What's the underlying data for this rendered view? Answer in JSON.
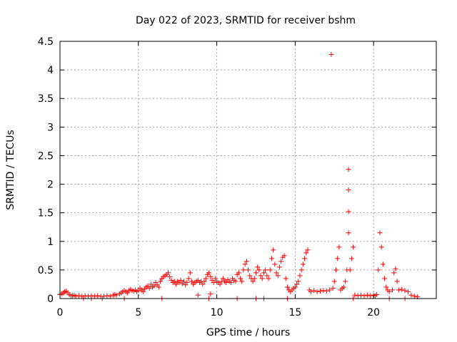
{
  "chart_data": {
    "type": "scatter",
    "title": "Day 022 of 2023, SRMTID for receiver bshm",
    "xlabel": "GPS time / hours",
    "ylabel": "SRMTID / TECUs",
    "xlim": [
      0,
      24
    ],
    "ylim": [
      0,
      4.5
    ],
    "x_ticks": [
      0,
      5,
      10,
      15,
      20
    ],
    "x_tick_labels": [
      "0",
      "5",
      "10",
      "15",
      "20"
    ],
    "y_ticks": [
      0,
      0.5,
      1,
      1.5,
      2,
      2.5,
      3,
      3.5,
      4,
      4.5
    ],
    "y_tick_labels": [
      "0",
      "0.5",
      "1",
      "1.5",
      "2",
      "2.5",
      "3",
      "3.5",
      "4",
      "4.5"
    ],
    "grid": true,
    "marker": "+",
    "color": "#ff0000",
    "series": [
      {
        "name": "SRMTID",
        "points": [
          [
            0.0,
            0.07
          ],
          [
            0.1,
            0.08
          ],
          [
            0.2,
            0.1
          ],
          [
            0.3,
            0.12
          ],
          [
            0.4,
            0.13
          ],
          [
            0.5,
            0.1
          ],
          [
            0.6,
            0.07
          ],
          [
            0.7,
            0.05
          ],
          [
            0.8,
            0.05
          ],
          [
            0.9,
            0.06
          ],
          [
            1.0,
            0.04
          ],
          [
            1.2,
            0.05
          ],
          [
            1.4,
            0.04
          ],
          [
            1.6,
            0.05
          ],
          [
            1.8,
            0.04
          ],
          [
            2.0,
            0.05
          ],
          [
            2.2,
            0.04
          ],
          [
            2.4,
            0.05
          ],
          [
            2.6,
            0.04
          ],
          [
            2.8,
            0.04
          ],
          [
            3.0,
            0.05
          ],
          [
            3.2,
            0.04
          ],
          [
            3.4,
            0.06
          ],
          [
            3.5,
            0.07
          ],
          [
            3.6,
            0.06
          ],
          [
            3.8,
            0.08
          ],
          [
            3.9,
            0.1
          ],
          [
            4.0,
            0.12
          ],
          [
            4.1,
            0.14
          ],
          [
            4.2,
            0.12
          ],
          [
            4.3,
            0.1
          ],
          [
            4.4,
            0.14
          ],
          [
            4.5,
            0.16
          ],
          [
            4.6,
            0.14
          ],
          [
            4.7,
            0.13
          ],
          [
            4.8,
            0.15
          ],
          [
            4.9,
            0.12
          ],
          [
            5.0,
            0.14
          ],
          [
            5.1,
            0.18
          ],
          [
            5.2,
            0.15
          ],
          [
            5.3,
            0.12
          ],
          [
            5.4,
            0.17
          ],
          [
            5.5,
            0.2
          ],
          [
            5.6,
            0.22
          ],
          [
            5.7,
            0.18
          ],
          [
            5.8,
            0.25
          ],
          [
            5.9,
            0.2
          ],
          [
            6.0,
            0.22
          ],
          [
            6.1,
            0.28
          ],
          [
            6.2,
            0.24
          ],
          [
            6.3,
            0.2
          ],
          [
            6.4,
            0.3
          ],
          [
            6.5,
            0.35
          ],
          [
            6.6,
            0.38
          ],
          [
            6.7,
            0.4
          ],
          [
            6.8,
            0.42
          ],
          [
            6.9,
            0.45
          ],
          [
            7.0,
            0.38
          ],
          [
            7.1,
            0.32
          ],
          [
            7.2,
            0.28
          ],
          [
            7.3,
            0.3
          ],
          [
            7.4,
            0.25
          ],
          [
            7.5,
            0.3
          ],
          [
            7.6,
            0.28
          ],
          [
            7.7,
            0.32
          ],
          [
            7.8,
            0.26
          ],
          [
            7.9,
            0.3
          ],
          [
            8.0,
            0.24
          ],
          [
            8.1,
            0.28
          ],
          [
            8.2,
            0.35
          ],
          [
            8.3,
            0.45
          ],
          [
            8.4,
            0.3
          ],
          [
            8.5,
            0.25
          ],
          [
            8.6,
            0.28
          ],
          [
            8.7,
            0.3
          ],
          [
            8.8,
            0.32
          ],
          [
            8.9,
            0.28
          ],
          [
            9.0,
            0.3
          ],
          [
            9.1,
            0.25
          ],
          [
            9.2,
            0.3
          ],
          [
            9.3,
            0.35
          ],
          [
            9.4,
            0.42
          ],
          [
            9.5,
            0.45
          ],
          [
            9.6,
            0.38
          ],
          [
            9.7,
            0.32
          ],
          [
            9.8,
            0.28
          ],
          [
            9.9,
            0.35
          ],
          [
            10.0,
            0.3
          ],
          [
            10.1,
            0.28
          ],
          [
            10.2,
            0.25
          ],
          [
            10.3,
            0.3
          ],
          [
            10.4,
            0.35
          ],
          [
            10.5,
            0.3
          ],
          [
            10.6,
            0.28
          ],
          [
            10.7,
            0.33
          ],
          [
            10.8,
            0.3
          ],
          [
            10.9,
            0.28
          ],
          [
            11.0,
            0.35
          ],
          [
            11.1,
            0.32
          ],
          [
            11.2,
            0.3
          ],
          [
            11.3,
            0.42
          ],
          [
            11.4,
            0.45
          ],
          [
            11.5,
            0.35
          ],
          [
            11.6,
            0.3
          ],
          [
            11.7,
            0.5
          ],
          [
            11.8,
            0.6
          ],
          [
            11.9,
            0.65
          ],
          [
            12.0,
            0.5
          ],
          [
            12.1,
            0.4
          ],
          [
            12.2,
            0.35
          ],
          [
            12.3,
            0.3
          ],
          [
            12.4,
            0.35
          ],
          [
            12.5,
            0.45
          ],
          [
            12.6,
            0.55
          ],
          [
            12.7,
            0.5
          ],
          [
            12.8,
            0.4
          ],
          [
            12.9,
            0.35
          ],
          [
            13.0,
            0.45
          ],
          [
            13.1,
            0.5
          ],
          [
            13.2,
            0.4
          ],
          [
            13.3,
            0.35
          ],
          [
            13.4,
            0.5
          ],
          [
            13.5,
            0.7
          ],
          [
            13.6,
            0.85
          ],
          [
            13.7,
            0.6
          ],
          [
            13.8,
            0.45
          ],
          [
            13.9,
            0.4
          ],
          [
            14.0,
            0.55
          ],
          [
            14.1,
            0.65
          ],
          [
            14.2,
            0.72
          ],
          [
            14.3,
            0.75
          ],
          [
            14.4,
            0.35
          ],
          [
            14.5,
            0.2
          ],
          [
            14.6,
            0.15
          ],
          [
            14.7,
            0.12
          ],
          [
            14.8,
            0.15
          ],
          [
            14.9,
            0.18
          ],
          [
            15.0,
            0.2
          ],
          [
            15.1,
            0.25
          ],
          [
            15.2,
            0.3
          ],
          [
            15.3,
            0.4
          ],
          [
            15.4,
            0.5
          ],
          [
            15.5,
            0.6
          ],
          [
            15.6,
            0.7
          ],
          [
            15.7,
            0.8
          ],
          [
            15.8,
            0.85
          ],
          [
            15.9,
            0.15
          ],
          [
            16.0,
            0.12
          ],
          [
            16.2,
            0.14
          ],
          [
            16.4,
            0.12
          ],
          [
            16.6,
            0.13
          ],
          [
            16.8,
            0.14
          ],
          [
            17.0,
            0.13
          ],
          [
            17.2,
            0.15
          ],
          [
            17.3,
            4.27
          ],
          [
            17.4,
            0.18
          ],
          [
            17.5,
            0.3
          ],
          [
            17.6,
            0.5
          ],
          [
            17.7,
            0.7
          ],
          [
            17.8,
            0.9
          ],
          [
            17.9,
            0.15
          ],
          [
            18.0,
            0.18
          ],
          [
            18.1,
            0.2
          ],
          [
            18.2,
            0.3
          ],
          [
            18.3,
            0.5
          ],
          [
            18.4,
            1.15
          ],
          [
            18.4,
            1.52
          ],
          [
            18.4,
            1.9
          ],
          [
            18.4,
            2.26
          ],
          [
            18.5,
            0.5
          ],
          [
            18.6,
            0.7
          ],
          [
            18.7,
            0.9
          ],
          [
            18.8,
            0.06
          ],
          [
            19.0,
            0.05
          ],
          [
            19.2,
            0.06
          ],
          [
            19.4,
            0.05
          ],
          [
            19.6,
            0.06
          ],
          [
            19.8,
            0.05
          ],
          [
            20.0,
            0.06
          ],
          [
            20.1,
            0.05
          ],
          [
            20.2,
            0.07
          ],
          [
            20.3,
            0.5
          ],
          [
            20.4,
            1.15
          ],
          [
            20.5,
            0.9
          ],
          [
            20.6,
            0.6
          ],
          [
            20.7,
            0.35
          ],
          [
            20.8,
            0.2
          ],
          [
            20.9,
            0.15
          ],
          [
            21.0,
            0.12
          ],
          [
            21.2,
            0.15
          ],
          [
            21.3,
            0.45
          ],
          [
            21.4,
            0.52
          ],
          [
            21.5,
            0.3
          ],
          [
            21.6,
            0.15
          ],
          [
            21.8,
            0.16
          ],
          [
            22.0,
            0.14
          ],
          [
            22.2,
            0.12
          ],
          [
            22.4,
            0.06
          ],
          [
            22.6,
            0.04
          ],
          [
            22.8,
            0.03
          ],
          [
            1.5,
            0.0
          ],
          [
            2.0,
            0.0
          ],
          [
            2.7,
            0.0
          ],
          [
            4.1,
            0.0
          ],
          [
            6.5,
            0.0
          ],
          [
            9.5,
            0.0
          ],
          [
            11.3,
            0.0
          ],
          [
            12.5,
            0.0
          ],
          [
            13.0,
            0.0
          ],
          [
            14.5,
            0.0
          ],
          [
            18.7,
            0.0
          ],
          [
            21.0,
            0.0
          ],
          [
            22.0,
            0.0
          ],
          [
            9.6,
            0.08
          ],
          [
            8.8,
            0.06
          ]
        ]
      }
    ]
  }
}
